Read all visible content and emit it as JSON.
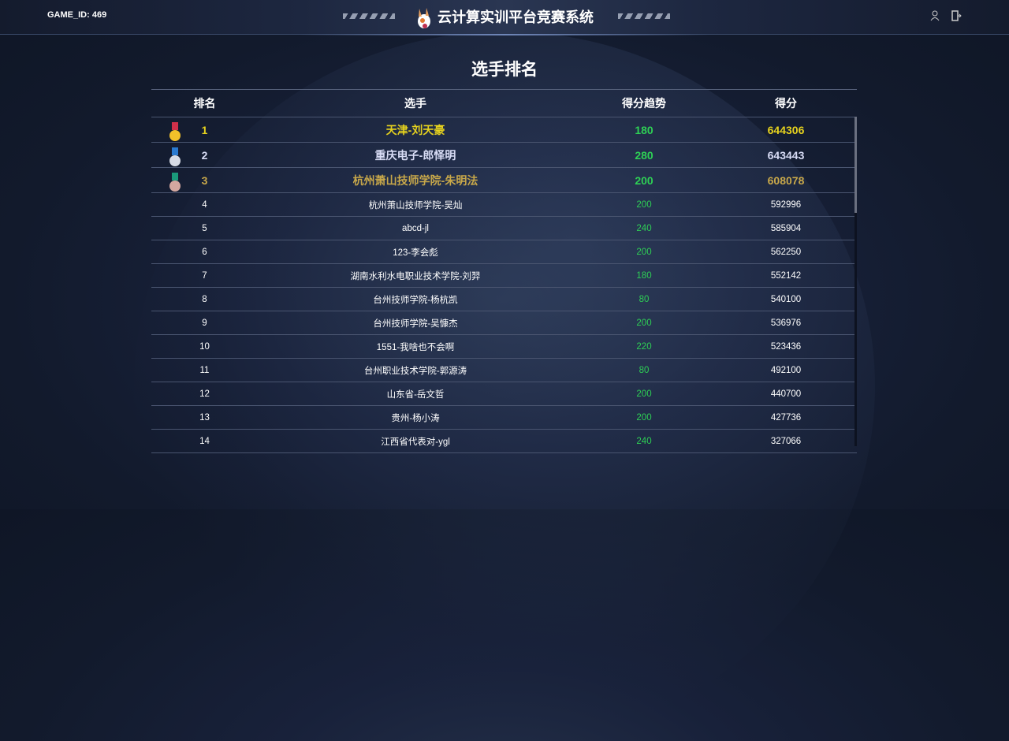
{
  "header": {
    "game_id_label": "GAME_ID:",
    "game_id": "469",
    "title": "云计算实训平台竞赛系统",
    "icons": [
      "user-icon",
      "logout-icon"
    ]
  },
  "page_title": "选手排名",
  "columns": [
    "排名",
    "选手",
    "得分趋势",
    "得分"
  ],
  "colors": {
    "gold": "#e6d21e",
    "silver": "#d8dcf5",
    "bronze": "#c8a84a",
    "trend": "#2ecf55"
  },
  "rows": [
    {
      "rank": "1",
      "player": "天津-刘天豪",
      "trend": "180",
      "score": "644306",
      "medal": "gold"
    },
    {
      "rank": "2",
      "player": "重庆电子-郎怿明",
      "trend": "280",
      "score": "643443",
      "medal": "silver"
    },
    {
      "rank": "3",
      "player": "杭州萧山技师学院-朱明法",
      "trend": "200",
      "score": "608078",
      "medal": "bronze"
    },
    {
      "rank": "4",
      "player": "杭州萧山技师学院-吴灿",
      "trend": "200",
      "score": "592996"
    },
    {
      "rank": "5",
      "player": "abcd-jl",
      "trend": "240",
      "score": "585904"
    },
    {
      "rank": "6",
      "player": "123-李会彪",
      "trend": "200",
      "score": "562250"
    },
    {
      "rank": "7",
      "player": "湖南水利水电职业技术学院-刘羿",
      "trend": "180",
      "score": "552142"
    },
    {
      "rank": "8",
      "player": "台州技师学院-杨杭凯",
      "trend": "80",
      "score": "540100"
    },
    {
      "rank": "9",
      "player": "台州技师学院-吴慷杰",
      "trend": "200",
      "score": "536976"
    },
    {
      "rank": "10",
      "player": "1551-我啥也不会啊",
      "trend": "220",
      "score": "523436"
    },
    {
      "rank": "11",
      "player": "台州职业技术学院-郭源涛",
      "trend": "80",
      "score": "492100"
    },
    {
      "rank": "12",
      "player": "山东省-岳文哲",
      "trend": "200",
      "score": "440700"
    },
    {
      "rank": "13",
      "player": "贵州-杨小涛",
      "trend": "200",
      "score": "427736"
    },
    {
      "rank": "14",
      "player": "江西省代表对-ygl",
      "trend": "240",
      "score": "327066"
    }
  ]
}
